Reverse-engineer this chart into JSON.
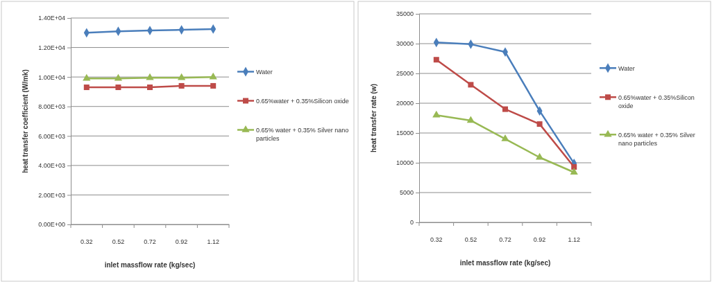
{
  "chart_data": [
    {
      "type": "line",
      "categories": [
        "0.32",
        "0.52",
        "0.72",
        "0.92",
        "1.12"
      ],
      "xlabel": "inlet massflow rate (kg/sec)",
      "ylabel": "heat transfer coefficient (W/mk)",
      "ylim": [
        0,
        14000
      ],
      "yticks": [
        {
          "value": 0,
          "label": "0.00E+00"
        },
        {
          "value": 2000,
          "label": "2.00E+03"
        },
        {
          "value": 4000,
          "label": "4.00E+03"
        },
        {
          "value": 6000,
          "label": "6.00E+03"
        },
        {
          "value": 8000,
          "label": "8.00E+03"
        },
        {
          "value": 10000,
          "label": "1.00E+04"
        },
        {
          "value": 12000,
          "label": "1.20E+04"
        },
        {
          "value": 14000,
          "label": "1.40E+04"
        }
      ],
      "grid": "y",
      "legend": "right",
      "series": [
        {
          "name": "Water",
          "color": "#4a7ebb",
          "marker": "diamond",
          "values": [
            13000,
            13100,
            13150,
            13200,
            13250
          ]
        },
        {
          "name": "0.65%water + 0.35%Silicon oxide",
          "color": "#be4b48",
          "marker": "square",
          "values": [
            9300,
            9300,
            9300,
            9400,
            9400
          ]
        },
        {
          "name": "0.65% water + 0.35% Silver nano particles",
          "color": "#98b954",
          "marker": "triangle",
          "values": [
            9900,
            9900,
            9950,
            9950,
            10000
          ]
        }
      ]
    },
    {
      "type": "line",
      "categories": [
        "0.32",
        "0.52",
        "0.72",
        "0.92",
        "1.12"
      ],
      "xlabel": "inlet massflow rate (kg/sec)",
      "ylabel": "heat transfer rate (w)",
      "ylim": [
        0,
        35000
      ],
      "yticks": [
        0,
        5000,
        10000,
        15000,
        20000,
        25000,
        30000,
        35000
      ],
      "grid": "y",
      "legend": "right",
      "series": [
        {
          "name": "Water",
          "color": "#4a7ebb",
          "marker": "diamond",
          "values": [
            30200,
            29900,
            28600,
            18700,
            9900
          ]
        },
        {
          "name": "0.65%water + 0.35%Silicon oxide",
          "color": "#be4b48",
          "marker": "square",
          "values": [
            27300,
            23100,
            19000,
            16500,
            9300
          ]
        },
        {
          "name": "0.65% water + 0.35% Silver nano particles",
          "color": "#98b954",
          "marker": "triangle",
          "values": [
            18000,
            17100,
            14000,
            10900,
            8400
          ]
        }
      ]
    }
  ]
}
